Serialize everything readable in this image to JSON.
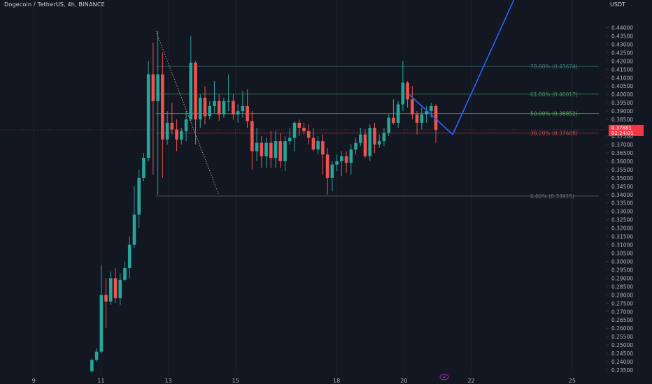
{
  "header": {
    "symbol_title": "Dogecoin / TetherUS, 4h, BINANCE",
    "axis_title": "USDT"
  },
  "colors": {
    "background": "#131722",
    "up": "#26a69a",
    "down": "#ef5350",
    "grid": "#1e222d",
    "projection": "#2962ff",
    "fib_786": "#3a7f7f",
    "fib_618": "#3f8f5a",
    "fib_500": "#4caf50",
    "fib_382": "#b84a4a",
    "fib_000": "#6b6f7a",
    "price_tag": "#f23645",
    "trend_dotted": "#c8c8c8"
  },
  "chart_data": {
    "type": "candlestick",
    "title": "Dogecoin / TetherUS, 4h, BINANCE",
    "ylabel": "USDT",
    "ylim": [
      0.2325,
      0.4565
    ],
    "xlim": [
      8.0,
      26.0
    ],
    "x_ticks": [
      "9",
      "11",
      "13",
      "15",
      "18",
      "20",
      "22",
      "25"
    ],
    "x_tick_values": [
      9.0,
      11.0,
      13.0,
      15.0,
      18.0,
      20.0,
      22.0,
      25.0
    ],
    "y_ticks": [
      0.235,
      0.24,
      0.245,
      0.25,
      0.255,
      0.26,
      0.265,
      0.27,
      0.275,
      0.28,
      0.285,
      0.29,
      0.295,
      0.3,
      0.305,
      0.31,
      0.315,
      0.32,
      0.325,
      0.33,
      0.335,
      0.34,
      0.345,
      0.35,
      0.355,
      0.36,
      0.365,
      0.37,
      0.375,
      0.38,
      0.385,
      0.39,
      0.395,
      0.4,
      0.405,
      0.41,
      0.415,
      0.42,
      0.425,
      0.43,
      0.435,
      0.44
    ],
    "y_tick_labels": [
      "0.23500",
      "0.24000",
      "0.24500",
      "0.25000",
      "0.25500",
      "0.26000",
      "0.26500",
      "0.27000",
      "0.27500",
      "0.28000",
      "0.28500",
      "0.29000",
      "0.29500",
      "0.30000",
      "0.30500",
      "0.31000",
      "0.31500",
      "0.32000",
      "0.32500",
      "0.33000",
      "0.33500",
      "0.34000",
      "0.34500",
      "0.35000",
      "0.35500",
      "0.36000",
      "0.36500",
      "0.37000",
      "0.37500",
      "0.38000",
      "0.38500",
      "0.39000",
      "0.39500",
      "0.40000",
      "0.40500",
      "0.41000",
      "0.41500",
      "0.42000",
      "0.42500",
      "0.43000",
      "0.43500",
      "0.44000"
    ],
    "candles": [
      {
        "t": 10.73,
        "o": 0.2343,
        "h": 0.242,
        "l": 0.2335,
        "c": 0.241
      },
      {
        "t": 10.87,
        "o": 0.241,
        "h": 0.248,
        "l": 0.24,
        "c": 0.246
      },
      {
        "t": 11.01,
        "o": 0.246,
        "h": 0.298,
        "l": 0.245,
        "c": 0.28
      },
      {
        "t": 11.15,
        "o": 0.28,
        "h": 0.29,
        "l": 0.26,
        "c": 0.276
      },
      {
        "t": 11.29,
        "o": 0.276,
        "h": 0.294,
        "l": 0.274,
        "c": 0.29
      },
      {
        "t": 11.43,
        "o": 0.29,
        "h": 0.296,
        "l": 0.275,
        "c": 0.278
      },
      {
        "t": 11.57,
        "o": 0.278,
        "h": 0.293,
        "l": 0.274,
        "c": 0.289
      },
      {
        "t": 11.71,
        "o": 0.289,
        "h": 0.3,
        "l": 0.288,
        "c": 0.296
      },
      {
        "t": 11.85,
        "o": 0.296,
        "h": 0.315,
        "l": 0.29,
        "c": 0.31
      },
      {
        "t": 11.99,
        "o": 0.31,
        "h": 0.345,
        "l": 0.308,
        "c": 0.328
      },
      {
        "t": 12.13,
        "o": 0.328,
        "h": 0.355,
        "l": 0.32,
        "c": 0.35
      },
      {
        "t": 12.27,
        "o": 0.35,
        "h": 0.365,
        "l": 0.348,
        "c": 0.362
      },
      {
        "t": 12.41,
        "o": 0.362,
        "h": 0.42,
        "l": 0.36,
        "c": 0.412
      },
      {
        "t": 12.55,
        "o": 0.412,
        "h": 0.431,
        "l": 0.352,
        "c": 0.396
      },
      {
        "t": 12.69,
        "o": 0.396,
        "h": 0.438,
        "l": 0.34,
        "c": 0.412
      },
      {
        "t": 12.83,
        "o": 0.412,
        "h": 0.425,
        "l": 0.35,
        "c": 0.373
      },
      {
        "t": 12.97,
        "o": 0.373,
        "h": 0.39,
        "l": 0.37,
        "c": 0.383
      },
      {
        "t": 13.11,
        "o": 0.383,
        "h": 0.395,
        "l": 0.376,
        "c": 0.379
      },
      {
        "t": 13.25,
        "o": 0.379,
        "h": 0.385,
        "l": 0.366,
        "c": 0.373
      },
      {
        "t": 13.39,
        "o": 0.373,
        "h": 0.38,
        "l": 0.37,
        "c": 0.378
      },
      {
        "t": 13.53,
        "o": 0.378,
        "h": 0.39,
        "l": 0.372,
        "c": 0.385
      },
      {
        "t": 13.67,
        "o": 0.385,
        "h": 0.435,
        "l": 0.384,
        "c": 0.419
      },
      {
        "t": 13.81,
        "o": 0.419,
        "h": 0.42,
        "l": 0.37,
        "c": 0.385
      },
      {
        "t": 13.95,
        "o": 0.385,
        "h": 0.4,
        "l": 0.38,
        "c": 0.398
      },
      {
        "t": 14.09,
        "o": 0.398,
        "h": 0.405,
        "l": 0.382,
        "c": 0.387
      },
      {
        "t": 14.23,
        "o": 0.387,
        "h": 0.396,
        "l": 0.385,
        "c": 0.393
      },
      {
        "t": 14.37,
        "o": 0.393,
        "h": 0.408,
        "l": 0.389,
        "c": 0.396
      },
      {
        "t": 14.51,
        "o": 0.396,
        "h": 0.4,
        "l": 0.384,
        "c": 0.388
      },
      {
        "t": 14.65,
        "o": 0.388,
        "h": 0.398,
        "l": 0.386,
        "c": 0.396
      },
      {
        "t": 14.79,
        "o": 0.396,
        "h": 0.412,
        "l": 0.39,
        "c": 0.396
      },
      {
        "t": 14.93,
        "o": 0.396,
        "h": 0.4,
        "l": 0.385,
        "c": 0.388
      },
      {
        "t": 15.07,
        "o": 0.388,
        "h": 0.394,
        "l": 0.383,
        "c": 0.39
      },
      {
        "t": 15.21,
        "o": 0.39,
        "h": 0.402,
        "l": 0.386,
        "c": 0.393
      },
      {
        "t": 15.35,
        "o": 0.393,
        "h": 0.403,
        "l": 0.38,
        "c": 0.384
      },
      {
        "t": 15.49,
        "o": 0.384,
        "h": 0.39,
        "l": 0.355,
        "c": 0.366
      },
      {
        "t": 15.63,
        "o": 0.366,
        "h": 0.38,
        "l": 0.36,
        "c": 0.371
      },
      {
        "t": 15.77,
        "o": 0.371,
        "h": 0.375,
        "l": 0.356,
        "c": 0.363
      },
      {
        "t": 15.91,
        "o": 0.363,
        "h": 0.374,
        "l": 0.356,
        "c": 0.371
      },
      {
        "t": 16.05,
        "o": 0.371,
        "h": 0.378,
        "l": 0.356,
        "c": 0.362
      },
      {
        "t": 16.19,
        "o": 0.362,
        "h": 0.378,
        "l": 0.356,
        "c": 0.372
      },
      {
        "t": 16.33,
        "o": 0.372,
        "h": 0.377,
        "l": 0.356,
        "c": 0.36
      },
      {
        "t": 16.47,
        "o": 0.36,
        "h": 0.375,
        "l": 0.354,
        "c": 0.372
      },
      {
        "t": 16.61,
        "o": 0.372,
        "h": 0.38,
        "l": 0.37,
        "c": 0.374
      },
      {
        "t": 16.75,
        "o": 0.374,
        "h": 0.384,
        "l": 0.366,
        "c": 0.383
      },
      {
        "t": 16.89,
        "o": 0.383,
        "h": 0.385,
        "l": 0.375,
        "c": 0.38
      },
      {
        "t": 17.03,
        "o": 0.38,
        "h": 0.383,
        "l": 0.376,
        "c": 0.378
      },
      {
        "t": 17.17,
        "o": 0.378,
        "h": 0.382,
        "l": 0.37,
        "c": 0.374
      },
      {
        "t": 17.31,
        "o": 0.374,
        "h": 0.38,
        "l": 0.366,
        "c": 0.367
      },
      {
        "t": 17.45,
        "o": 0.367,
        "h": 0.375,
        "l": 0.364,
        "c": 0.372
      },
      {
        "t": 17.59,
        "o": 0.372,
        "h": 0.376,
        "l": 0.352,
        "c": 0.364
      },
      {
        "t": 17.73,
        "o": 0.364,
        "h": 0.368,
        "l": 0.34,
        "c": 0.35
      },
      {
        "t": 17.87,
        "o": 0.35,
        "h": 0.36,
        "l": 0.342,
        "c": 0.358
      },
      {
        "t": 18.01,
        "o": 0.358,
        "h": 0.364,
        "l": 0.354,
        "c": 0.36
      },
      {
        "t": 18.15,
        "o": 0.36,
        "h": 0.366,
        "l": 0.351,
        "c": 0.363
      },
      {
        "t": 18.29,
        "o": 0.363,
        "h": 0.366,
        "l": 0.353,
        "c": 0.359
      },
      {
        "t": 18.43,
        "o": 0.359,
        "h": 0.37,
        "l": 0.352,
        "c": 0.367
      },
      {
        "t": 18.57,
        "o": 0.367,
        "h": 0.374,
        "l": 0.364,
        "c": 0.371
      },
      {
        "t": 18.71,
        "o": 0.371,
        "h": 0.38,
        "l": 0.369,
        "c": 0.376
      },
      {
        "t": 18.85,
        "o": 0.376,
        "h": 0.379,
        "l": 0.362,
        "c": 0.363
      },
      {
        "t": 18.99,
        "o": 0.363,
        "h": 0.382,
        "l": 0.36,
        "c": 0.38
      },
      {
        "t": 19.13,
        "o": 0.38,
        "h": 0.383,
        "l": 0.365,
        "c": 0.37
      },
      {
        "t": 19.27,
        "o": 0.37,
        "h": 0.376,
        "l": 0.368,
        "c": 0.372
      },
      {
        "t": 19.41,
        "o": 0.372,
        "h": 0.38,
        "l": 0.369,
        "c": 0.377
      },
      {
        "t": 19.55,
        "o": 0.377,
        "h": 0.388,
        "l": 0.375,
        "c": 0.386
      },
      {
        "t": 19.69,
        "o": 0.386,
        "h": 0.397,
        "l": 0.382,
        "c": 0.383
      },
      {
        "t": 19.83,
        "o": 0.383,
        "h": 0.396,
        "l": 0.38,
        "c": 0.394
      },
      {
        "t": 19.97,
        "o": 0.394,
        "h": 0.42,
        "l": 0.39,
        "c": 0.407
      },
      {
        "t": 20.11,
        "o": 0.407,
        "h": 0.408,
        "l": 0.392,
        "c": 0.397
      },
      {
        "t": 20.25,
        "o": 0.397,
        "h": 0.405,
        "l": 0.385,
        "c": 0.388
      },
      {
        "t": 20.39,
        "o": 0.388,
        "h": 0.39,
        "l": 0.376,
        "c": 0.383
      },
      {
        "t": 20.53,
        "o": 0.383,
        "h": 0.392,
        "l": 0.379,
        "c": 0.388
      },
      {
        "t": 20.67,
        "o": 0.388,
        "h": 0.393,
        "l": 0.383,
        "c": 0.39
      },
      {
        "t": 20.81,
        "o": 0.39,
        "h": 0.395,
        "l": 0.386,
        "c": 0.393
      },
      {
        "t": 20.95,
        "o": 0.393,
        "h": 0.394,
        "l": 0.371,
        "c": 0.3788
      }
    ],
    "fib_levels": [
      {
        "label": "78.60% (0.41674)",
        "price": 0.41674,
        "color_key": "fib_786"
      },
      {
        "label": "61.80% (0.40017)",
        "price": 0.40017,
        "color_key": "fib_618"
      },
      {
        "label": "50.00% (0.38852)",
        "price": 0.38852,
        "color_key": "fib_500"
      },
      {
        "label": "38.20% (0.37688)",
        "price": 0.37688,
        "color_key": "fib_382"
      },
      {
        "label": "0.00% (0.33915)",
        "price": 0.33915,
        "color_key": "fib_000"
      }
    ],
    "fib_x_range": [
      12.63,
      21.0
    ],
    "trend_line": {
      "points": [
        [
          12.63,
          0.438
        ],
        [
          14.5,
          0.34
        ]
      ],
      "style": "dotted"
    },
    "projection_path": {
      "points": [
        [
          20.15,
          0.4
        ],
        [
          20.75,
          0.389
        ],
        [
          21.45,
          0.376
        ],
        [
          23.3,
          0.458
        ]
      ]
    },
    "current_price_tags": [
      "0.37881",
      "02:24:01"
    ],
    "current_price": 0.37881,
    "x_marker": {
      "t": 21.2,
      "symbol": "⚡"
    }
  }
}
